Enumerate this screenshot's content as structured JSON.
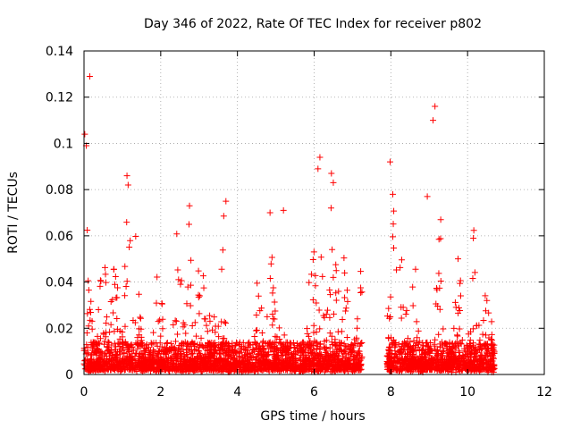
{
  "chart_data": {
    "type": "scatter",
    "title": "Day 346 of 2022, Rate Of TEC Index for receiver p802",
    "xlabel": "GPS time / hours",
    "ylabel": "ROTI / TECUs",
    "xlim": [
      0,
      12
    ],
    "ylim": [
      0,
      0.14
    ],
    "x_ticks": [
      "0",
      "2",
      "4",
      "6",
      "8",
      "10",
      "12"
    ],
    "y_ticks": [
      "0",
      "0.02",
      "0.04",
      "0.06",
      "0.08",
      "0.1",
      "0.12",
      "0.14"
    ],
    "grid": true,
    "marker": "+",
    "color": "#ff0000",
    "series": [
      {
        "name": "ROTI",
        "segments": [
          {
            "x_start": 0.0,
            "x_end": 7.25
          },
          {
            "x_start": 7.9,
            "x_end": 10.7
          }
        ],
        "notable_points": [
          {
            "x": 0.02,
            "y": 0.104
          },
          {
            "x": 0.06,
            "y": 0.099
          },
          {
            "x": 0.15,
            "y": 0.129
          },
          {
            "x": 1.12,
            "y": 0.086
          },
          {
            "x": 1.15,
            "y": 0.082
          },
          {
            "x": 2.75,
            "y": 0.073
          },
          {
            "x": 3.7,
            "y": 0.075
          },
          {
            "x": 4.85,
            "y": 0.07
          },
          {
            "x": 5.2,
            "y": 0.071
          },
          {
            "x": 6.15,
            "y": 0.094
          },
          {
            "x": 6.1,
            "y": 0.089
          },
          {
            "x": 6.45,
            "y": 0.087
          },
          {
            "x": 6.5,
            "y": 0.083
          },
          {
            "x": 7.98,
            "y": 0.092
          },
          {
            "x": 8.05,
            "y": 0.078
          },
          {
            "x": 8.95,
            "y": 0.077
          },
          {
            "x": 9.15,
            "y": 0.116
          },
          {
            "x": 9.1,
            "y": 0.11
          },
          {
            "x": 9.3,
            "y": 0.067
          },
          {
            "x": 10.15,
            "y": 0.059
          }
        ],
        "bursts": [
          {
            "x": 0.1,
            "peak": 0.057
          },
          {
            "x": 0.5,
            "peak": 0.067
          },
          {
            "x": 0.8,
            "peak": 0.047
          },
          {
            "x": 1.15,
            "peak": 0.072
          },
          {
            "x": 1.35,
            "peak": 0.052
          },
          {
            "x": 1.95,
            "peak": 0.05
          },
          {
            "x": 2.45,
            "peak": 0.061
          },
          {
            "x": 2.75,
            "peak": 0.072
          },
          {
            "x": 3.05,
            "peak": 0.06
          },
          {
            "x": 3.35,
            "peak": 0.044
          },
          {
            "x": 3.65,
            "peak": 0.061
          },
          {
            "x": 4.55,
            "peak": 0.042
          },
          {
            "x": 4.85,
            "peak": 0.068
          },
          {
            "x": 5.1,
            "peak": 0.058
          },
          {
            "x": 5.95,
            "peak": 0.063
          },
          {
            "x": 6.15,
            "peak": 0.088
          },
          {
            "x": 6.45,
            "peak": 0.082
          },
          {
            "x": 6.6,
            "peak": 0.059
          },
          {
            "x": 6.8,
            "peak": 0.044
          },
          {
            "x": 7.2,
            "peak": 0.04
          },
          {
            "x": 8.05,
            "peak": 0.073
          },
          {
            "x": 8.3,
            "peak": 0.053
          },
          {
            "x": 8.6,
            "peak": 0.046
          },
          {
            "x": 9.3,
            "peak": 0.066
          },
          {
            "x": 9.75,
            "peak": 0.051
          },
          {
            "x": 10.15,
            "peak": 0.058
          },
          {
            "x": 10.5,
            "peak": 0.04
          }
        ]
      }
    ]
  }
}
